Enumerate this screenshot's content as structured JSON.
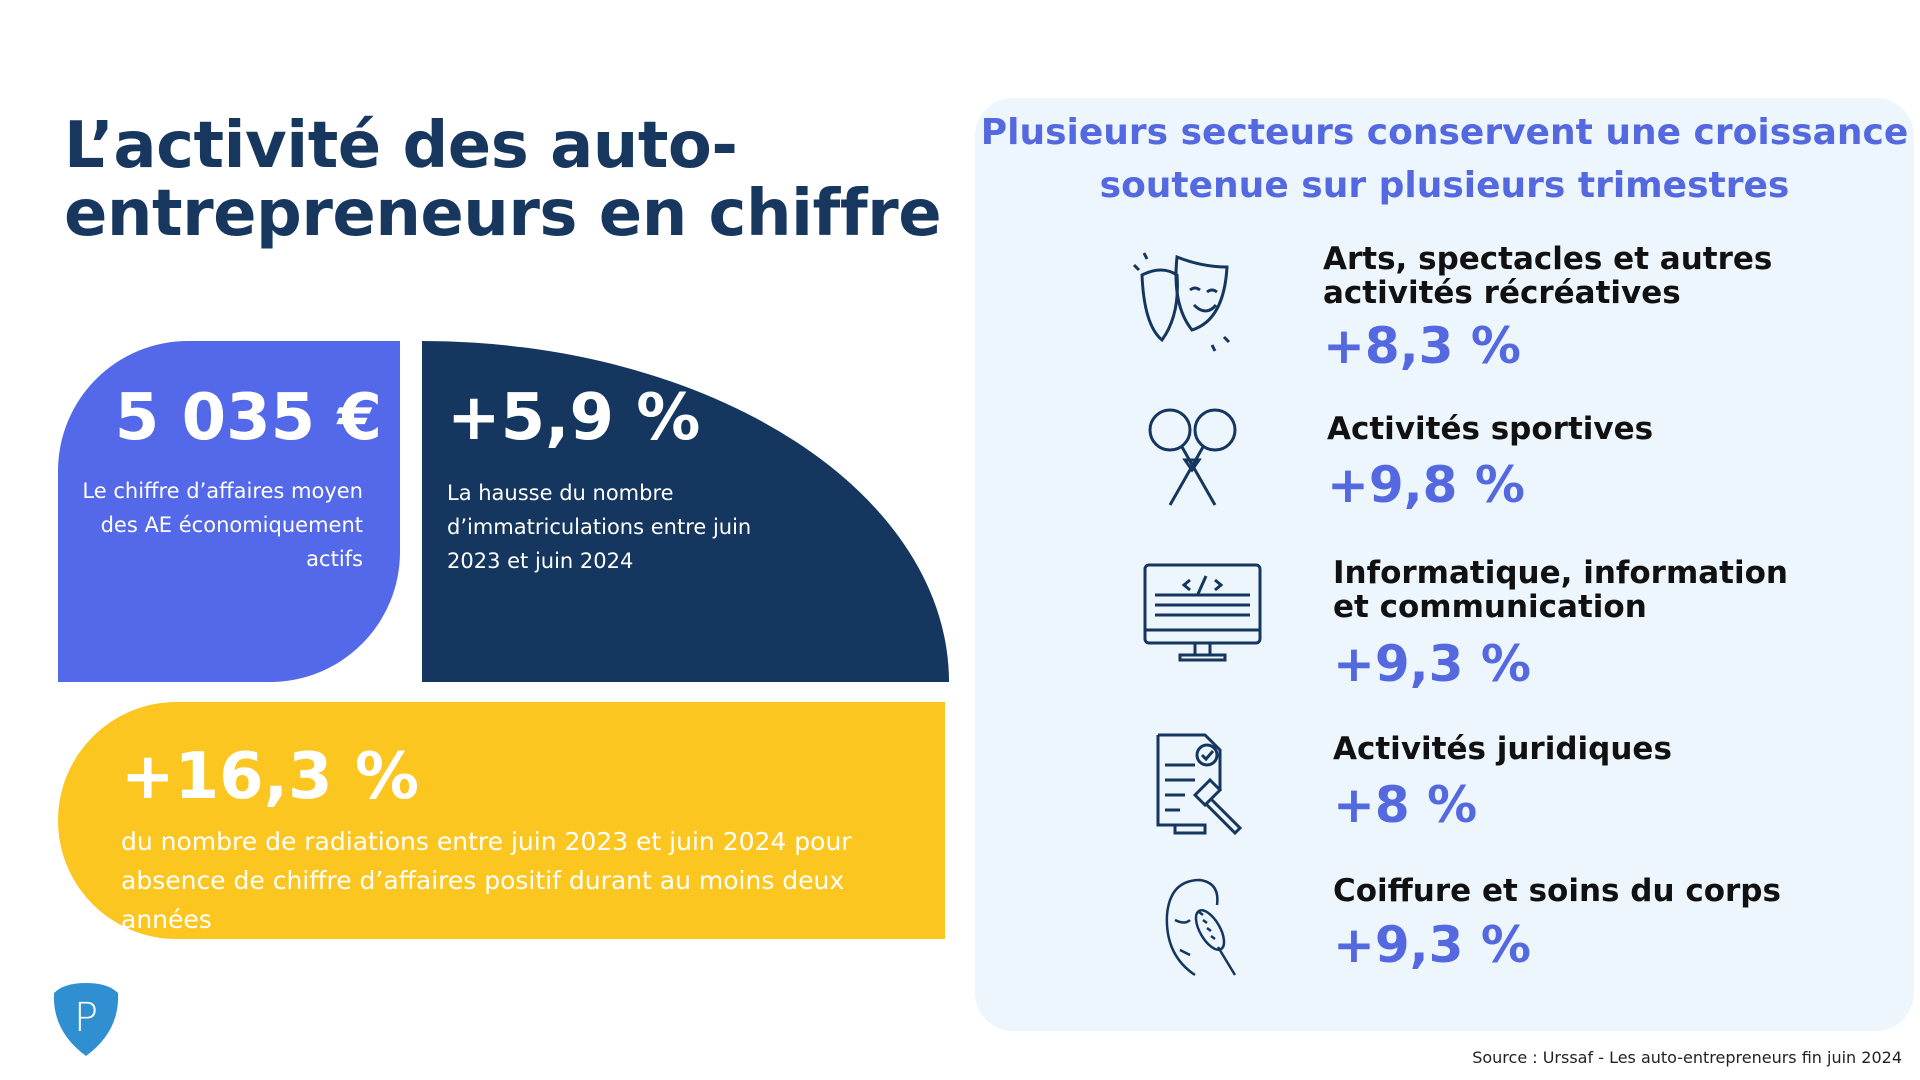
{
  "title": "L’activité des auto-entrepreneurs en chiffre",
  "stats": [
    {
      "value": "5 035 €",
      "text": "Le chiffre d’affaires moyen des AE économiquement actifs",
      "color": "#5468ea"
    },
    {
      "value": "+5,9 %",
      "text": "La hausse du nombre d’immatriculations entre juin 2023 et juin 2024",
      "color": "#14365f"
    },
    {
      "value": "+16,3 %",
      "text": "du nombre de radiations entre juin 2023 et juin 2024 pour absence de chiffre d’affaires positif durant au moins deux années",
      "color": "#fcc621"
    }
  ],
  "panel": {
    "title": "Plusieurs secteurs conservent une croissance soutenue sur plusieurs trimestres",
    "items": [
      {
        "icon": "theater-masks-icon",
        "label": "Arts, spectacles et autres activités récréatives",
        "value": "+8,3 %"
      },
      {
        "icon": "badminton-rackets-icon",
        "label": "Activités sportives",
        "value": "+9,8 %"
      },
      {
        "icon": "computer-code-icon",
        "label": "Informatique, information et communication",
        "value": "+9,3 %"
      },
      {
        "icon": "legal-document-gavel-icon",
        "label": "Activités juridiques",
        "value": "+8 %"
      },
      {
        "icon": "hair-brush-icon",
        "label": "Coiffure et soins du corps",
        "value": "+9,3 %"
      }
    ]
  },
  "logo": "P",
  "source": "Source : Urssaf - Les auto-entrepreneurs fin juin 2024",
  "colors": {
    "navy": "#14365f",
    "accent": "#5468e0",
    "yellow": "#fcc621",
    "panel": "#eef6fd"
  }
}
